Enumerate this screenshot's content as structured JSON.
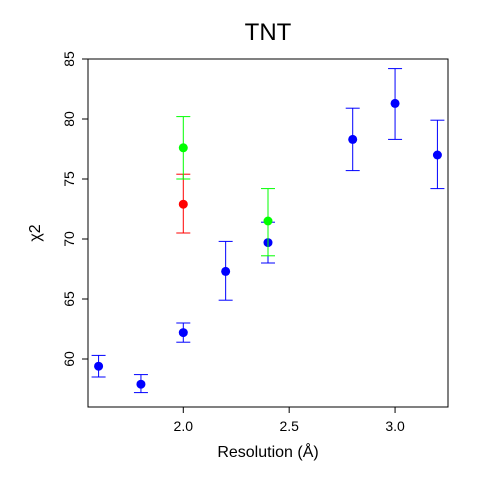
{
  "chart_data": {
    "type": "scatter",
    "title": "TNT",
    "xlabel": "Resolution (Å)",
    "ylabel": "χ2",
    "xlim": [
      1.55,
      3.25
    ],
    "ylim": [
      56,
      85
    ],
    "x_ticks": [
      2.0,
      2.5,
      3.0
    ],
    "x_tick_labels": [
      "2.0",
      "2.5",
      "3.0"
    ],
    "y_ticks": [
      60,
      65,
      70,
      75,
      80,
      85
    ],
    "y_tick_labels": [
      "60",
      "65",
      "70",
      "75",
      "80",
      "85"
    ],
    "grid": false,
    "legend": "none",
    "series": [
      {
        "color": "#0000ff",
        "points": [
          {
            "x": 1.6,
            "y": 59.4,
            "lo": 58.5,
            "hi": 60.3
          },
          {
            "x": 1.8,
            "y": 57.9,
            "lo": 57.2,
            "hi": 58.7
          },
          {
            "x": 2.0,
            "y": 62.2,
            "lo": 61.4,
            "hi": 63.0
          },
          {
            "x": 2.2,
            "y": 67.3,
            "lo": 64.9,
            "hi": 69.8
          },
          {
            "x": 2.4,
            "y": 69.7,
            "lo": 68.0,
            "hi": 71.4
          },
          {
            "x": 2.8,
            "y": 78.3,
            "lo": 75.7,
            "hi": 80.9
          },
          {
            "x": 3.0,
            "y": 81.3,
            "lo": 78.3,
            "hi": 84.2
          },
          {
            "x": 3.2,
            "y": 77.0,
            "lo": 74.2,
            "hi": 79.9
          }
        ]
      },
      {
        "color": "#ff0000",
        "points": [
          {
            "x": 2.0,
            "y": 72.9,
            "lo": 70.5,
            "hi": 75.4
          }
        ]
      },
      {
        "color": "#00ff00",
        "points": [
          {
            "x": 2.0,
            "y": 77.6,
            "lo": 75.0,
            "hi": 80.2
          },
          {
            "x": 2.4,
            "y": 71.5,
            "lo": 68.6,
            "hi": 74.2
          }
        ]
      }
    ]
  }
}
